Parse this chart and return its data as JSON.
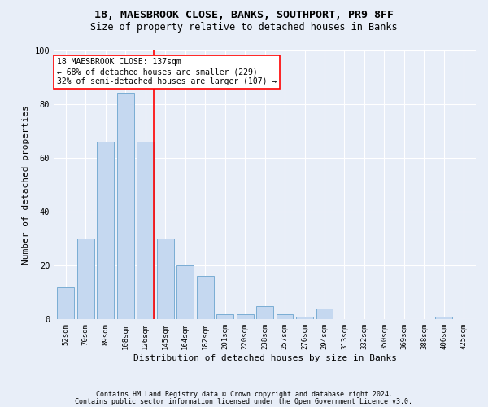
{
  "title1": "18, MAESBROOK CLOSE, BANKS, SOUTHPORT, PR9 8FF",
  "title2": "Size of property relative to detached houses in Banks",
  "xlabel": "Distribution of detached houses by size in Banks",
  "ylabel": "Number of detached properties",
  "footnote1": "Contains HM Land Registry data © Crown copyright and database right 2024.",
  "footnote2": "Contains public sector information licensed under the Open Government Licence v3.0.",
  "categories": [
    "52sqm",
    "70sqm",
    "89sqm",
    "108sqm",
    "126sqm",
    "145sqm",
    "164sqm",
    "182sqm",
    "201sqm",
    "220sqm",
    "238sqm",
    "257sqm",
    "276sqm",
    "294sqm",
    "313sqm",
    "332sqm",
    "350sqm",
    "369sqm",
    "388sqm",
    "406sqm",
    "425sqm"
  ],
  "values": [
    12,
    30,
    66,
    84,
    66,
    30,
    20,
    16,
    2,
    2,
    5,
    2,
    1,
    4,
    0,
    0,
    0,
    0,
    0,
    1,
    0
  ],
  "bar_color": "#c5d8f0",
  "bar_edge_color": "#7aadd4",
  "vline_color": "red",
  "vline_pos": 4.43,
  "annotation_title": "18 MAESBROOK CLOSE: 137sqm",
  "annotation_line2": "← 68% of detached houses are smaller (229)",
  "annotation_line3": "32% of semi-detached houses are larger (107) →",
  "annotation_box_color": "white",
  "annotation_box_edge": "red",
  "ylim": [
    0,
    100
  ],
  "yticks": [
    0,
    20,
    40,
    60,
    80,
    100
  ],
  "bg_color": "#e8eef8",
  "plot_bg_color": "#e8eef8",
  "grid_color": "white",
  "title1_fontsize": 9.5,
  "title2_fontsize": 8.5,
  "xlabel_fontsize": 8,
  "ylabel_fontsize": 8,
  "annotation_fontsize": 7,
  "tick_fontsize": 6.5,
  "ytick_fontsize": 7.5,
  "footnote_fontsize": 6
}
